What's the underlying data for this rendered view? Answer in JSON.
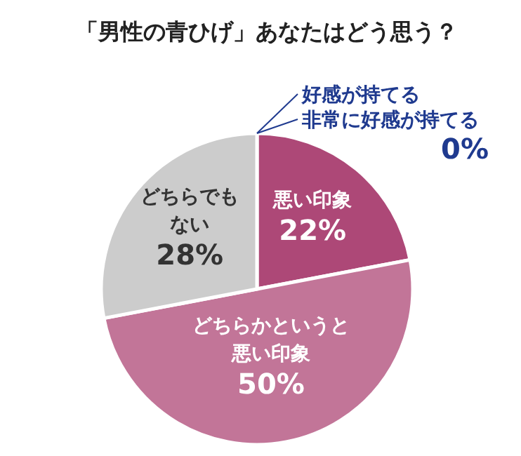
{
  "chart_data": {
    "type": "pie",
    "title": "「男性の青ひげ」あなたはどう思う？",
    "categories": [
      "好感が持てる",
      "非常に好感が持てる",
      "悪い印象",
      "どちらかというと悪い印象",
      "どちらでもない"
    ],
    "values": [
      0,
      0,
      22,
      50,
      28
    ],
    "colors": [
      "#1f3a8f",
      "#1f3a8f",
      "#ad4877",
      "#c27598",
      "#cccccc"
    ],
    "value_labels": [
      null,
      "0%",
      "22%",
      "50%",
      "28%"
    ]
  }
}
